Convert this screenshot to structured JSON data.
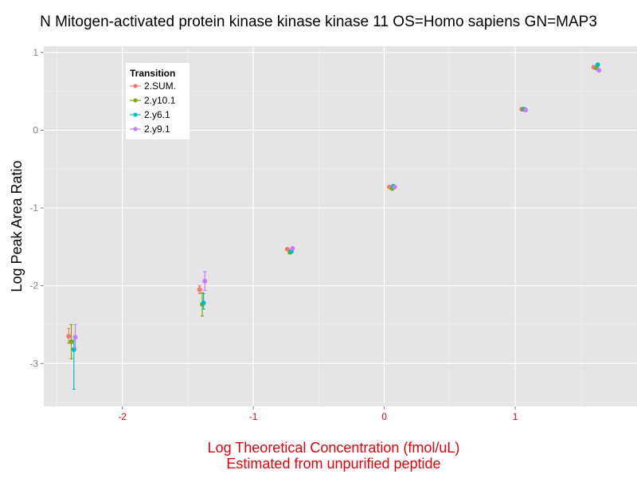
{
  "chart_data": {
    "type": "scatter",
    "title": "N Mitogen-activated protein kinase kinase kinase 11 OS=Homo sapiens GN=MAP3",
    "xlabel_lines": [
      "Log Theoretical Concentration (fmol/uL)",
      "Estimated from unpurified peptide"
    ],
    "ylabel": "Log Peak Area Ratio",
    "xlim": [
      -2.6,
      1.93
    ],
    "ylim": [
      -3.55,
      1.08
    ],
    "x_ticks": [
      -2,
      -1,
      0,
      1
    ],
    "x_tick_labels": [
      "-2",
      "-1",
      "0",
      "1"
    ],
    "y_ticks": [
      -3,
      -2,
      -1,
      0,
      1
    ],
    "y_tick_labels": [
      "-3",
      "-2",
      "-1",
      "0",
      "1"
    ],
    "grid": true,
    "panel_background": "#e5e5e5",
    "xlabel_color": "#e8000b",
    "legend": {
      "title": "Transition",
      "placement": "top-left"
    },
    "series": [
      {
        "name": "2.SUM.",
        "color": "#f8766d",
        "points": [
          {
            "x": -2.41,
            "y": -2.65,
            "ylo": -2.74,
            "yhi": -2.55
          },
          {
            "x": -1.41,
            "y": -2.05,
            "ylo": -2.1,
            "yhi": -2.0
          },
          {
            "x": -0.74,
            "y": -1.53
          },
          {
            "x": 0.04,
            "y": -0.73
          },
          {
            "x": 1.05,
            "y": 0.27
          },
          {
            "x": 1.6,
            "y": 0.81
          }
        ]
      },
      {
        "name": "2.y10.1",
        "color": "#7cae00",
        "points": [
          {
            "x": -2.39,
            "y": -2.72,
            "ylo": -2.94,
            "yhi": -2.5
          },
          {
            "x": -1.39,
            "y": -2.24,
            "ylo": -2.39,
            "yhi": -2.09
          },
          {
            "x": -0.72,
            "y": -1.57
          },
          {
            "x": 0.06,
            "y": -0.75
          },
          {
            "x": 1.06,
            "y": 0.27
          },
          {
            "x": 1.62,
            "y": 0.8
          }
        ]
      },
      {
        "name": "2.y6.1",
        "color": "#00bfc4",
        "points": [
          {
            "x": -2.37,
            "y": -2.82,
            "ylo": -3.33,
            "yhi": -2.7
          },
          {
            "x": -1.38,
            "y": -2.22,
            "ylo": -2.3,
            "yhi": -2.1
          },
          {
            "x": -0.71,
            "y": -1.56
          },
          {
            "x": 0.07,
            "y": -0.72
          },
          {
            "x": 1.07,
            "y": 0.27
          },
          {
            "x": 1.63,
            "y": 0.84
          }
        ]
      },
      {
        "name": "2.y9.1",
        "color": "#c77cff",
        "points": [
          {
            "x": -2.36,
            "y": -2.66,
            "ylo": -2.8,
            "yhi": -2.5
          },
          {
            "x": -1.37,
            "y": -1.94,
            "ylo": -2.06,
            "yhi": -1.82
          },
          {
            "x": -0.7,
            "y": -1.52
          },
          {
            "x": 0.08,
            "y": -0.73
          },
          {
            "x": 1.08,
            "y": 0.26
          },
          {
            "x": 1.64,
            "y": 0.77
          }
        ]
      }
    ]
  }
}
